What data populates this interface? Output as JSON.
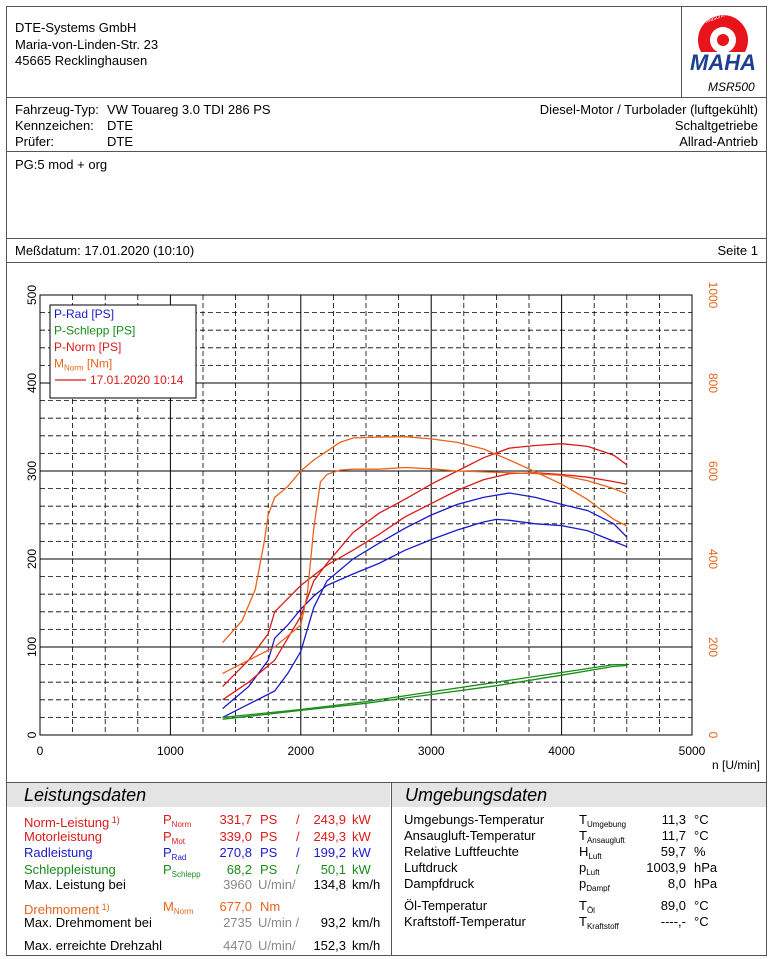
{
  "company": {
    "name": "DTE-Systems GmbH",
    "street": "Maria-von-Linden-Str. 23",
    "city": "45665 Recklinghausen"
  },
  "logo": {
    "ring_text": "Maschinenbau Haldenwang",
    "brand": "MAHA",
    "model": "MSR500",
    "icon": "gear-icon",
    "color": "#e8141c",
    "brand_color": "#1c3f94"
  },
  "vehicle": {
    "type_label": "Fahrzeug-Typ:",
    "type_value": "VW Touareg 3.0 TDI 286 PS",
    "plate_label": "Kennzeichen:",
    "plate_value": "DTE",
    "tester_label": "Prüfer:",
    "tester_value": "DTE",
    "engine": "Diesel-Motor / Turbolader (luftgekühlt)",
    "gearbox": "Schaltgetriebe",
    "drive": "Allrad-Antrieb"
  },
  "note": "PG:5 mod + org",
  "measurement": {
    "date_label": "Meßdatum: 17.01.2020 (10:10)",
    "page_label": "Seite 1"
  },
  "chart_data": {
    "type": "line",
    "xlabel": "n [U/min]",
    "xlim": [
      0,
      5000
    ],
    "ylim_left": [
      0,
      500
    ],
    "ylim_right": [
      0,
      1000
    ],
    "x_ticks": [
      "0",
      "1000",
      "2000",
      "3000",
      "4000",
      "5000"
    ],
    "y_left_ticks": [
      "0",
      "100",
      "200",
      "300",
      "400",
      "500"
    ],
    "y_right_ticks": [
      "0",
      "200",
      "400",
      "600",
      "800",
      "1000"
    ],
    "grid": true,
    "legend_position": "top-left",
    "legend": [
      {
        "label": "P-Rad [PS]",
        "color": "#1a1acc"
      },
      {
        "label": "P-Schlepp [PS]",
        "color": "#1a8c1a"
      },
      {
        "label": "P-Norm [PS]",
        "color": "#dd1a1a"
      },
      {
        "label": "M",
        "sub": "Norm",
        "suffix": " [Nm]",
        "color": "#e8641a"
      },
      {
        "label": "17.01.2020 10:14",
        "color": "#dd1a1a",
        "is_run": true
      }
    ],
    "series": [
      {
        "name": "P-Rad [PS]",
        "axis": "left",
        "color": "#1a1acc",
        "x": [
          1400,
          1600,
          1800,
          1900,
          2000,
          2100,
          2200,
          2400,
          2600,
          2800,
          3000,
          3200,
          3400,
          3600,
          3800,
          4000,
          4200,
          4400,
          4500
        ],
        "y": [
          20,
          35,
          50,
          70,
          95,
          145,
          175,
          200,
          218,
          235,
          250,
          262,
          270,
          275,
          270,
          262,
          255,
          240,
          225
        ]
      },
      {
        "name": "P-Rad [PS] 17.01.2020 10:14",
        "axis": "left",
        "color": "#1a1acc",
        "x": [
          1400,
          1600,
          1750,
          1800,
          1900,
          2000,
          2100,
          2200,
          2400,
          2600,
          2800,
          3000,
          3200,
          3400,
          3500,
          3600,
          3800,
          4000,
          4200,
          4400,
          4500
        ],
        "y": [
          30,
          55,
          85,
          110,
          125,
          143,
          158,
          170,
          183,
          195,
          210,
          222,
          233,
          242,
          245,
          244,
          240,
          238,
          232,
          220,
          214
        ]
      },
      {
        "name": "P-Schlepp [PS]",
        "axis": "left",
        "color": "#1a8c1a",
        "x": [
          1400,
          2000,
          2500,
          3000,
          3500,
          4000,
          4400,
          4500
        ],
        "y": [
          18,
          28,
          36,
          46,
          56,
          68,
          78,
          79
        ]
      },
      {
        "name": "P-Schlepp [PS] 17.01.2020 10:14",
        "axis": "left",
        "color": "#1a8c1a",
        "x": [
          1400,
          2000,
          2500,
          3000,
          3500,
          4000,
          4400,
          4500
        ],
        "y": [
          20,
          29,
          38,
          49,
          60,
          71,
          80,
          80
        ]
      },
      {
        "name": "P-Norm [PS]",
        "axis": "left",
        "color": "#dd1a1a",
        "x": [
          1400,
          1600,
          1800,
          2000,
          2100,
          2200,
          2400,
          2600,
          2800,
          3000,
          3200,
          3400,
          3600,
          3800,
          4000,
          4200,
          4400,
          4500
        ],
        "y": [
          40,
          60,
          85,
          135,
          175,
          195,
          230,
          252,
          268,
          285,
          300,
          315,
          326,
          329,
          331,
          328,
          318,
          307
        ]
      },
      {
        "name": "P-Norm [PS] 17.01.2020 10:14",
        "axis": "left",
        "color": "#dd1a1a",
        "x": [
          1400,
          1600,
          1750,
          1800,
          1900,
          2000,
          2200,
          2400,
          2600,
          2800,
          3000,
          3200,
          3400,
          3600,
          3800,
          4000,
          4200,
          4400,
          4500
        ],
        "y": [
          55,
          85,
          115,
          140,
          155,
          170,
          193,
          210,
          228,
          248,
          263,
          278,
          290,
          297,
          298,
          296,
          293,
          288,
          285
        ]
      },
      {
        "name": "M Norm [Nm]",
        "axis": "right",
        "color": "#e8641a",
        "x": [
          1400,
          1600,
          1800,
          2000,
          2050,
          2100,
          2150,
          2200,
          2300,
          2400,
          2600,
          2800,
          3000,
          3200,
          3400,
          3600,
          3800,
          4000,
          4200,
          4400,
          4500
        ],
        "y": [
          140,
          170,
          200,
          250,
          320,
          470,
          575,
          592,
          602,
          604,
          604,
          608,
          605,
          600,
          598,
          596,
          594,
          590,
          578,
          560,
          548
        ]
      },
      {
        "name": "M Norm [Nm] 17.01.2020 10:14",
        "axis": "right",
        "color": "#e8641a",
        "x": [
          1400,
          1550,
          1650,
          1720,
          1750,
          1800,
          1900,
          2000,
          2100,
          2200,
          2300,
          2400,
          2600,
          2800,
          3000,
          3200,
          3400,
          3600,
          3800,
          4000,
          4200,
          4400,
          4500
        ],
        "y": [
          210,
          260,
          330,
          440,
          500,
          540,
          565,
          600,
          625,
          645,
          665,
          675,
          677,
          678,
          673,
          665,
          650,
          625,
          598,
          570,
          535,
          490,
          475
        ]
      }
    ]
  },
  "performance": {
    "title": "Leistungsdaten",
    "rows": [
      {
        "label": "Norm-Leistung",
        "sup": "1)",
        "sym": "P",
        "sub": "Norm",
        "v1": "331,7",
        "u1": "PS",
        "sep": "/",
        "v2": "243,9",
        "u2": "kW",
        "color": "#dd1a1a"
      },
      {
        "label": "Motorleistung",
        "sup": "",
        "sym": "P",
        "sub": "Mot",
        "v1": "339,0",
        "u1": "PS",
        "sep": "/",
        "v2": "249,3",
        "u2": "kW",
        "color": "#dd1a1a"
      },
      {
        "label": "Radleistung",
        "sup": "",
        "sym": "P",
        "sub": "Rad",
        "v1": "270,8",
        "u1": "PS",
        "sep": "/",
        "v2": "199,2",
        "u2": "kW",
        "color": "#1a1acc"
      },
      {
        "label": "Schleppleistung",
        "sup": "",
        "sym": "P",
        "sub": "Schlepp",
        "v1": "68,2",
        "u1": "PS",
        "sep": "/",
        "v2": "50,1",
        "u2": "kW",
        "color": "#1a8c1a"
      }
    ],
    "max_power": {
      "label": "Max. Leistung bei",
      "rpm": "3960",
      "rpm_unit": "U/min/",
      "speed": "134,8",
      "speed_unit": "km/h"
    },
    "torque": {
      "label": "Drehmoment",
      "sup": "1)",
      "sym": "M",
      "sub": "Norm",
      "value": "677,0",
      "unit": "Nm",
      "color": "#e8641a"
    },
    "max_torque": {
      "label": "Max. Drehmoment bei",
      "rpm": "2735",
      "rpm_unit": "U/min /",
      "speed": "93,2",
      "speed_unit": "km/h"
    },
    "max_rpm": {
      "label": "Max. erreichte Drehzahl",
      "rpm": "4470",
      "rpm_unit": "U/min/",
      "speed": "152,3",
      "speed_unit": "km/h"
    }
  },
  "environment": {
    "title": "Umgebungsdaten",
    "rows": [
      {
        "label": "Umgebungs-Temperatur",
        "sym": "T",
        "sub": "Umgebung",
        "value": "11,3",
        "unit": "°C"
      },
      {
        "label": "Ansaugluft-Temperatur",
        "sym": "T",
        "sub": "Ansaugluft",
        "value": "11,7",
        "unit": "°C"
      },
      {
        "label": "Relative Luftfeuchte",
        "sym": "H",
        "sub": "Luft",
        "value": "59,7",
        "unit": "%"
      },
      {
        "label": "Luftdruck",
        "sym": "p",
        "sub": "Luft",
        "value": "1003,9",
        "unit": "hPa"
      },
      {
        "label": "Dampfdruck",
        "sym": "p",
        "sub": "Dampf",
        "value": "8,0",
        "unit": "hPa"
      },
      {
        "label": "Öl-Temperatur",
        "sym": "T",
        "sub": "Öl",
        "value": "89,0",
        "unit": "°C"
      },
      {
        "label": "Kraftstoff-Temperatur",
        "sym": "T",
        "sub": "Kraftstoff",
        "value": "----,-",
        "unit": "°C"
      }
    ]
  }
}
